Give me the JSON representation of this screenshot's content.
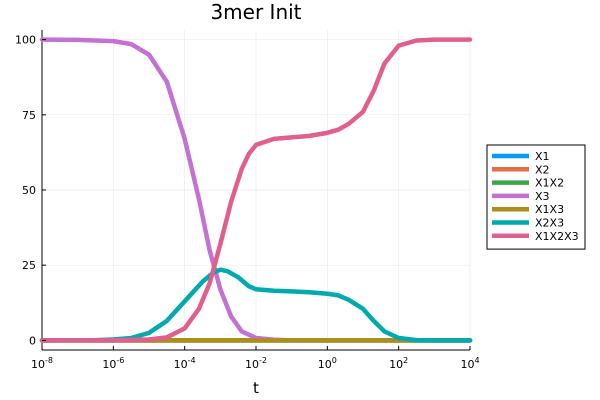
{
  "chart_data": {
    "type": "line",
    "title": "3mer Init",
    "xlabel": "t",
    "ylabel": "",
    "xscale": "log",
    "xlim_exponents": [
      -8,
      4
    ],
    "ylim": [
      0,
      100
    ],
    "x_tick_base": "10",
    "x_tick_exponents": [
      "-8",
      "-6",
      "-4",
      "-2",
      "0",
      "2",
      "4"
    ],
    "y_ticks": [
      "0",
      "25",
      "50",
      "75",
      "100"
    ],
    "grid": true,
    "legend_position": "right",
    "series": [
      {
        "name": "X1",
        "color": "#009AFA",
        "x_log10": [
          -8,
          4
        ],
        "y": [
          0,
          0
        ]
      },
      {
        "name": "X2",
        "color": "#E36F47",
        "x_log10": [
          -8,
          4
        ],
        "y": [
          0,
          0
        ]
      },
      {
        "name": "X1X2",
        "color": "#3EA44E",
        "x_log10": [
          -8,
          4
        ],
        "y": [
          0,
          0
        ]
      },
      {
        "name": "X3",
        "color": "#C371D2",
        "x_log10": [
          -8,
          -7,
          -6,
          -5.5,
          -5,
          -4.5,
          -4,
          -3.6,
          -3.3,
          -3,
          -2.7,
          -2.4,
          -2,
          -1.5,
          -1,
          0,
          1,
          2,
          3,
          4
        ],
        "y": [
          100,
          99.9,
          99.5,
          98.5,
          95,
          86,
          67,
          47,
          30,
          17,
          8,
          3,
          0.8,
          0.2,
          0,
          0,
          0,
          0,
          0,
          0
        ]
      },
      {
        "name": "X1X3",
        "color": "#AC8E18",
        "x_log10": [
          -8,
          4
        ],
        "y": [
          0,
          0
        ]
      },
      {
        "name": "X2X3",
        "color": "#00A9AD",
        "x_log10": [
          -8,
          -6.5,
          -6,
          -5.5,
          -5,
          -4.5,
          -4,
          -3.5,
          -3.2,
          -3,
          -2.8,
          -2.5,
          -2.2,
          -2,
          -1.5,
          -1,
          -0.5,
          0,
          0.3,
          0.6,
          1,
          1.3,
          1.6,
          2,
          2.5,
          3,
          4
        ],
        "y": [
          0,
          0.1,
          0.3,
          0.8,
          2.5,
          6.5,
          13,
          19.5,
          22.5,
          23.5,
          23,
          21,
          18,
          17,
          16.5,
          16.3,
          16,
          15.5,
          15,
          13.5,
          10.5,
          6.5,
          3,
          0.8,
          0.1,
          0,
          0
        ]
      },
      {
        "name": "X1X2X3",
        "color": "#E15F8D",
        "x_log10": [
          -8,
          -6.5,
          -6,
          -5,
          -4.5,
          -4,
          -3.6,
          -3.3,
          -3,
          -2.7,
          -2.4,
          -2.2,
          -2,
          -1.5,
          -1,
          -0.5,
          0,
          0.3,
          0.6,
          1,
          1.3,
          1.6,
          2,
          2.5,
          3,
          4
        ],
        "y": [
          0,
          0,
          0,
          0.3,
          1,
          4,
          10.5,
          19,
          32,
          46,
          57,
          62,
          65,
          67,
          67.5,
          68,
          69,
          70,
          72,
          76,
          83,
          92,
          98,
          99.7,
          100,
          100
        ]
      }
    ]
  }
}
